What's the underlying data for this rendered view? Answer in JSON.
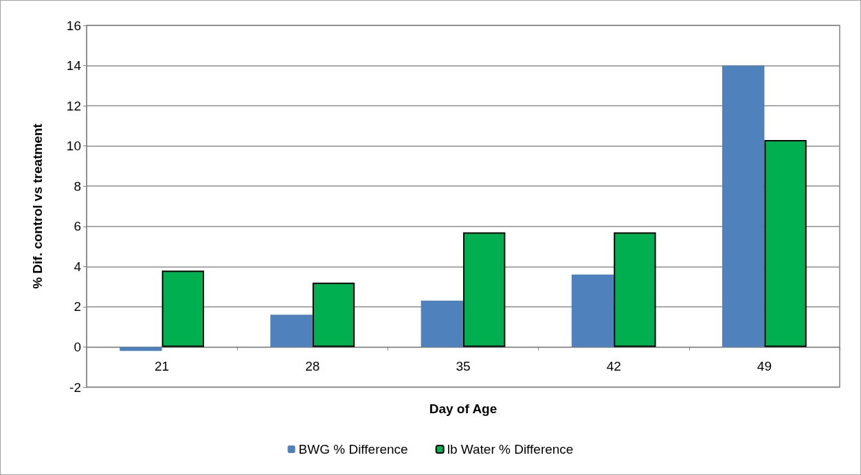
{
  "chart_data": {
    "type": "bar",
    "xlabel": "Day of Age",
    "ylabel": "% Dif. control vs treatment",
    "categories": [
      "21",
      "28",
      "35",
      "42",
      "49"
    ],
    "series": [
      {
        "name": "BWG % Difference",
        "color": "#4f81bd",
        "values": [
          -0.2,
          1.6,
          2.3,
          3.6,
          14.0
        ]
      },
      {
        "name": "lb Water % Difference",
        "color": "#00b050",
        "values": [
          3.8,
          3.2,
          5.7,
          5.7,
          10.3
        ]
      }
    ],
    "ylim": [
      -2,
      16
    ],
    "yticks": [
      -2,
      0,
      2,
      4,
      6,
      8,
      10,
      12,
      14,
      16
    ],
    "grid": "y",
    "legend": "bottom"
  }
}
